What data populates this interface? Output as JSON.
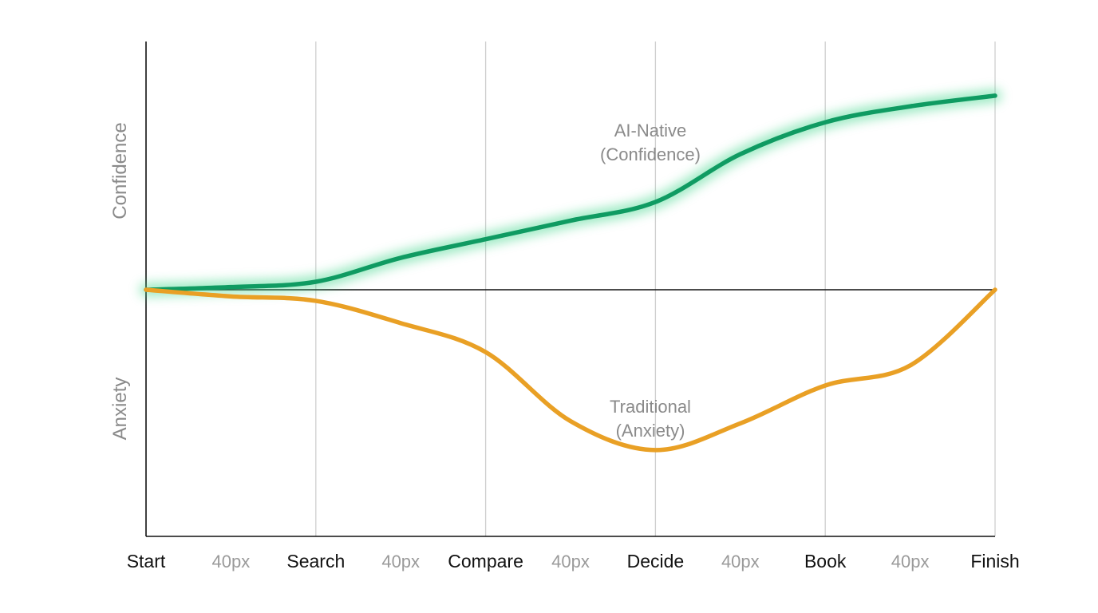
{
  "chart_data": {
    "type": "line",
    "title": "",
    "x_stages": [
      "Start",
      "Search",
      "Compare",
      "Decide",
      "Book",
      "Finish"
    ],
    "x_gap_labels": [
      "40px",
      "40px",
      "40px",
      "40px",
      "40px"
    ],
    "ylabel_top": "Confidence",
    "ylabel_bottom": "Anxiety",
    "ylim": [
      -100,
      100
    ],
    "grid": "vertical lines at each stage",
    "baseline": 0,
    "series": [
      {
        "name": "AI-Native (Confidence)",
        "label_lines": [
          "AI-Native",
          "(Confidence)"
        ],
        "color": "#0f9b62",
        "glow": true,
        "x": [
          0,
          0.5,
          1,
          1.5,
          2,
          2.5,
          3,
          3.5,
          4,
          4.5,
          5
        ],
        "y": [
          0,
          1,
          3,
          12,
          19,
          26,
          33,
          51,
          63,
          69,
          73
        ]
      },
      {
        "name": "Traditional (Anxiety)",
        "label_lines": [
          "Traditional",
          "(Anxiety)"
        ],
        "color": "#e9a025",
        "glow": false,
        "x": [
          0,
          0.5,
          1,
          1.5,
          2,
          2.5,
          3,
          3.5,
          4,
          4.5,
          5
        ],
        "y": [
          0,
          -3,
          -5,
          -15,
          -28,
          -59,
          -72,
          -60,
          -43,
          -34,
          0
        ]
      }
    ]
  }
}
